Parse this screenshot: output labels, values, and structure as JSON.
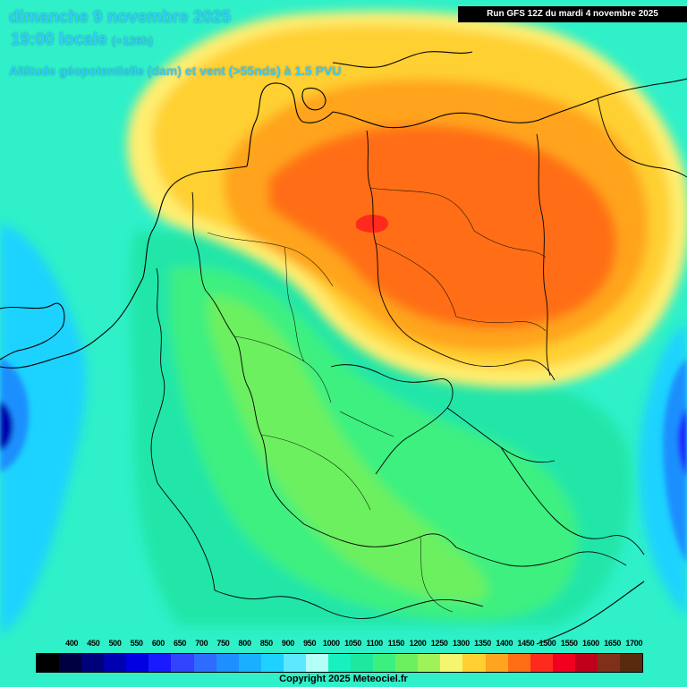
{
  "header": {
    "date": "dimanche 9 novembre 2025",
    "time": "19:00 locale",
    "lead": "(+126h)",
    "variable": "Altitude géopotentielle (dam) et vent (>55nds) à 1.5 PVU",
    "run": "Run GFS 12Z du mardi 4 novembre 2025"
  },
  "legend": {
    "labels": [
      "400",
      "450",
      "500",
      "550",
      "600",
      "650",
      "700",
      "750",
      "800",
      "850",
      "900",
      "950",
      "1000",
      "1050",
      "1100",
      "1150",
      "1200",
      "1250",
      "1300",
      "1350",
      "1400",
      "1450",
      "1500",
      "1550",
      "1600",
      "1650",
      "1700"
    ],
    "colors": [
      "#000000",
      "#000040",
      "#00007a",
      "#0000b0",
      "#0000e0",
      "#1a1aff",
      "#3344ff",
      "#2f6bff",
      "#1e8fff",
      "#1ab0ff",
      "#1ed2ff",
      "#5ee8ff",
      "#b5fff9",
      "#18f0c0",
      "#1ee8a0",
      "#3cf080",
      "#6cf060",
      "#a0f25a",
      "#f5f570",
      "#ffd030",
      "#ffa41e",
      "#ff6e14",
      "#ff2a1e",
      "#f0001e",
      "#c0001a",
      "#803018",
      "#5a2a0e"
    ],
    "map_colors": {
      "aqua": "#2ff0c8",
      "green_teal": "#22e6a8",
      "green": "#3cf080",
      "light_green": "#6cf060",
      "yellow": "#ffd030",
      "orange": "#ffa41e",
      "dark_orange": "#ff6e14",
      "red": "#ff2a1e",
      "cyan": "#1ed2ff",
      "blue": "#1e8fff",
      "dark_blue": "#0000b0"
    }
  },
  "footer": {
    "copyright": "Copyright 2025 Meteociel.fr"
  }
}
